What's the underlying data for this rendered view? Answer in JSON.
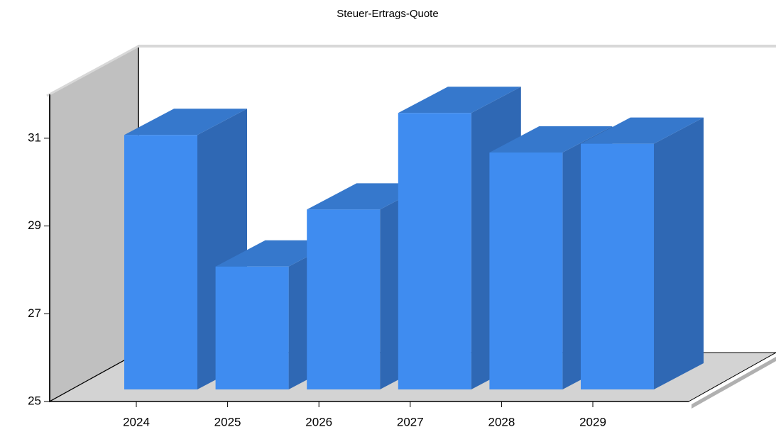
{
  "chart_data": {
    "type": "bar",
    "title": "Steuer-Ertrags-Quote",
    "categories": [
      "2024",
      "2025",
      "2026",
      "2027",
      "2028",
      "2029"
    ],
    "values": [
      30.8,
      27.8,
      29.1,
      31.3,
      30.4,
      30.6
    ],
    "color": "#3f8cf0",
    "ylim": [
      25,
      32
    ],
    "yticks": [
      25,
      27,
      29,
      31
    ]
  }
}
